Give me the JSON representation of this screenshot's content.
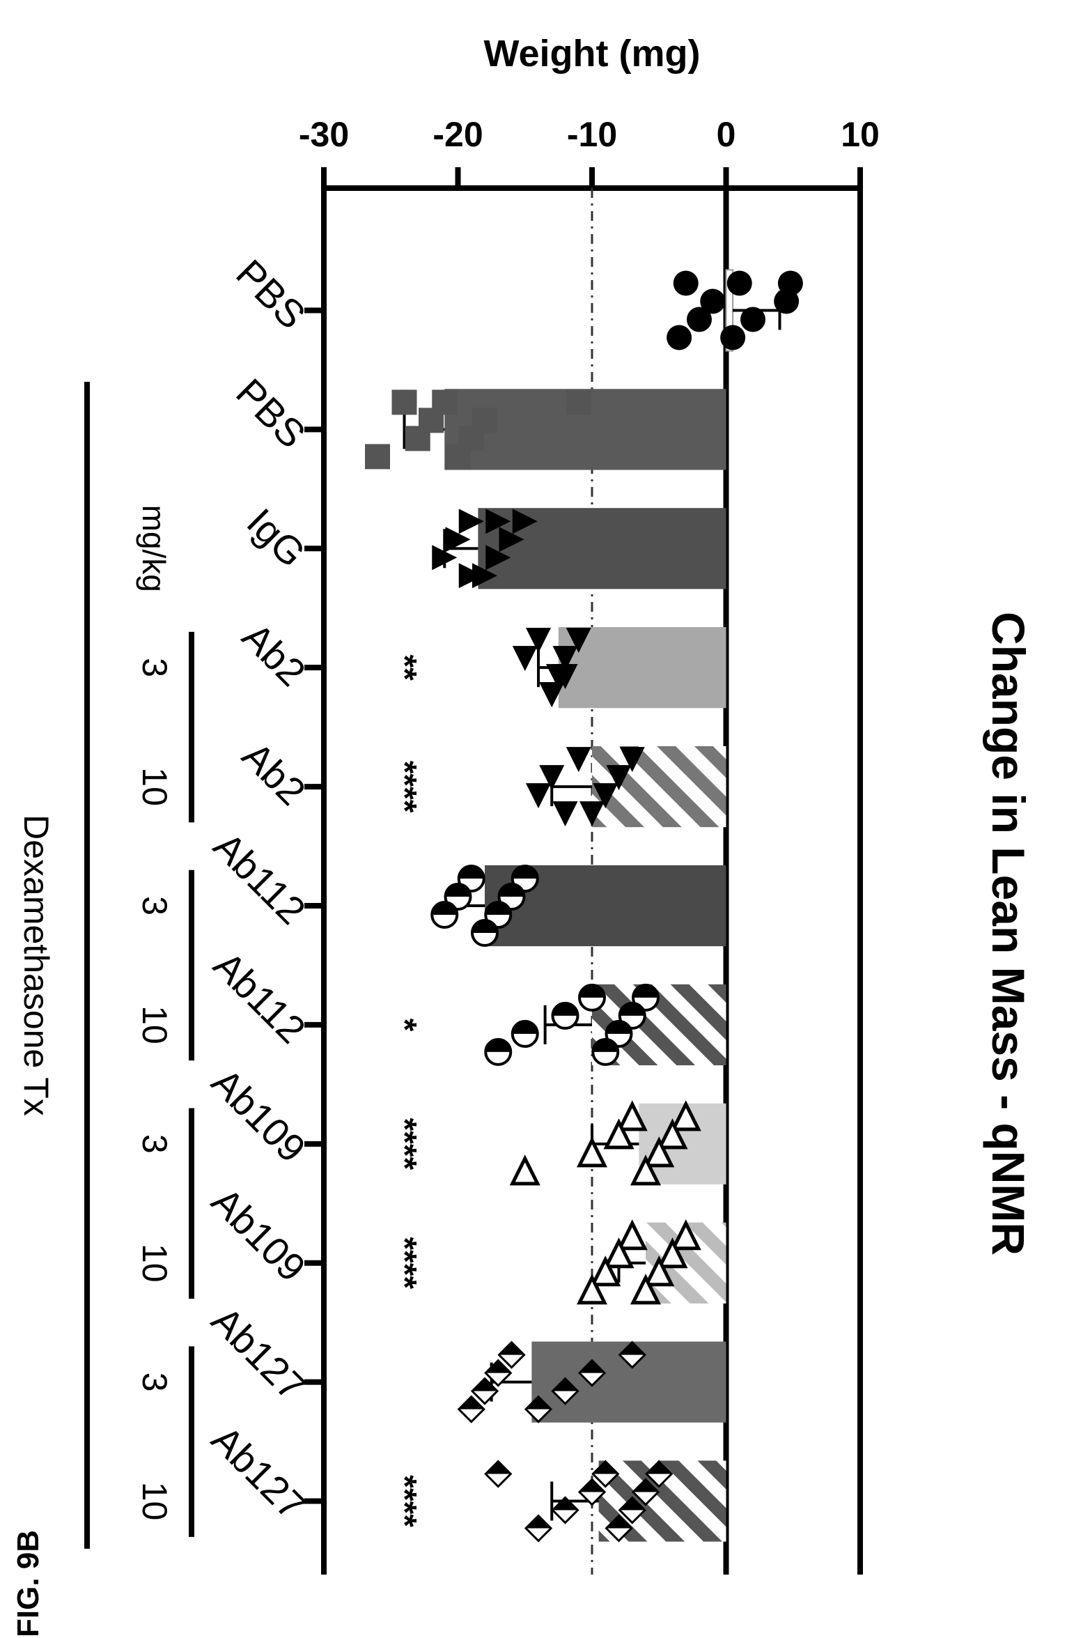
{
  "figure_label": "FIG. 9B",
  "chart_data": {
    "type": "bar",
    "title": "Change in Lean Mass - qNMR",
    "ylabel": "Weight (mg)",
    "ylim": [
      -30,
      10
    ],
    "yticks": [
      "10",
      "0",
      "-10",
      "-20",
      "-30"
    ],
    "reference_line": -10,
    "categories": [
      "PBS",
      "PBS",
      "IgG",
      "Ab2",
      "Ab2",
      "Ab112",
      "Ab112",
      "Ab109",
      "Ab109",
      "Ab127",
      "Ab127"
    ],
    "doses": [
      "",
      "",
      "",
      "3",
      "10",
      "3",
      "10",
      "3",
      "10",
      "3",
      "10"
    ],
    "dose_unit_label": "mg/kg",
    "treatment_label": "Dexamethasone Tx",
    "values": [
      0.5,
      -21,
      -18.5,
      -12.5,
      -10,
      -18,
      -10,
      -6.5,
      -6,
      -14.5,
      -9.5
    ],
    "errors": [
      3.5,
      3,
      2.5,
      1.5,
      3,
      2.5,
      3.5,
      3.5,
      2,
      3,
      3.5
    ],
    "significance": [
      "",
      "",
      "",
      "**",
      "****",
      "",
      "*",
      "****",
      "****",
      "",
      "****"
    ],
    "points": [
      [
        4.8,
        4.5,
        2,
        0.5,
        1,
        -1,
        -2,
        -3.5,
        -3
      ],
      [
        -11,
        -18,
        -19,
        -20,
        -21,
        -22,
        -23,
        -26,
        -24
      ],
      [
        -15,
        -16,
        -17,
        -18,
        -19,
        -20,
        -21,
        -19,
        -17
      ],
      [
        -11,
        -12,
        -12.5,
        -13,
        -14,
        -15,
        -12,
        -13
      ],
      [
        -7,
        -8,
        -9,
        -10,
        -11,
        -13,
        -14,
        -12
      ],
      [
        -15,
        -16,
        -17,
        -18,
        -19,
        -20,
        -21
      ],
      [
        -6,
        -7,
        -8,
        -9,
        -10,
        -12,
        -15,
        -17
      ],
      [
        -3,
        -4,
        -5,
        -6,
        -7,
        -8,
        -10,
        -15
      ],
      [
        -3,
        -4,
        -5,
        -6,
        -7,
        -8,
        -9,
        -10
      ],
      [
        -7,
        -10,
        -12,
        -14,
        -16,
        -17,
        -18,
        -19
      ],
      [
        -5,
        -6,
        -7,
        -8,
        -9,
        -10,
        -12,
        -14,
        -17
      ]
    ],
    "bar_colors": [
      "#ffffff",
      "#5a5a5a",
      "#505050",
      "#a8a8a8",
      "#b8b8b8",
      "#4a4a4a",
      "#6e6e6e",
      "#cfcfcf",
      "#d8d8d8",
      "#6a6a6a",
      "#7a7a7a"
    ],
    "bar_hatched": [
      false,
      false,
      false,
      false,
      true,
      false,
      true,
      false,
      true,
      false,
      true
    ],
    "markers": [
      "circle",
      "square",
      "triangle-up",
      "triangle-right",
      "triangle-right",
      "half-circle",
      "half-circle",
      "triangle-open",
      "triangle-open",
      "diamond-half",
      "diamond-half"
    ]
  }
}
